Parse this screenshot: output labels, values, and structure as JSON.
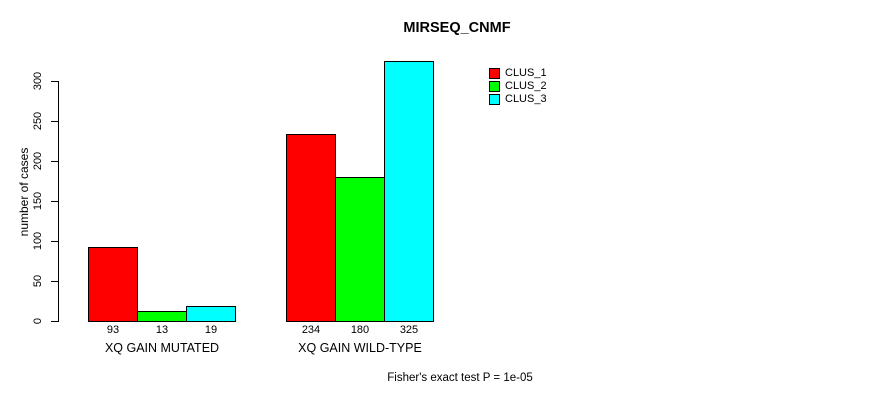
{
  "chart_data": {
    "type": "bar",
    "title": "MIRSEQ_CNMF",
    "ylabel": "number of cases",
    "xlabel": "",
    "categories": [
      "XQ GAIN MUTATED",
      "XQ GAIN WILD-TYPE"
    ],
    "series": [
      {
        "name": "CLUS_1",
        "color": "#ff0000",
        "values": [
          93,
          234
        ]
      },
      {
        "name": "CLUS_2",
        "color": "#00ff00",
        "values": [
          13,
          180
        ]
      },
      {
        "name": "CLUS_3",
        "color": "#00ffff",
        "values": [
          19,
          325
        ]
      }
    ],
    "bar_labels": [
      [
        "93",
        "13",
        "19"
      ],
      [
        "234",
        "180",
        "325"
      ]
    ],
    "yticks": [
      0,
      50,
      100,
      150,
      200,
      250,
      300
    ],
    "ylim": [
      0,
      325
    ],
    "grid": false,
    "legend_position": "top-right",
    "annotation": "Fisher's exact test P = 1e-05"
  }
}
